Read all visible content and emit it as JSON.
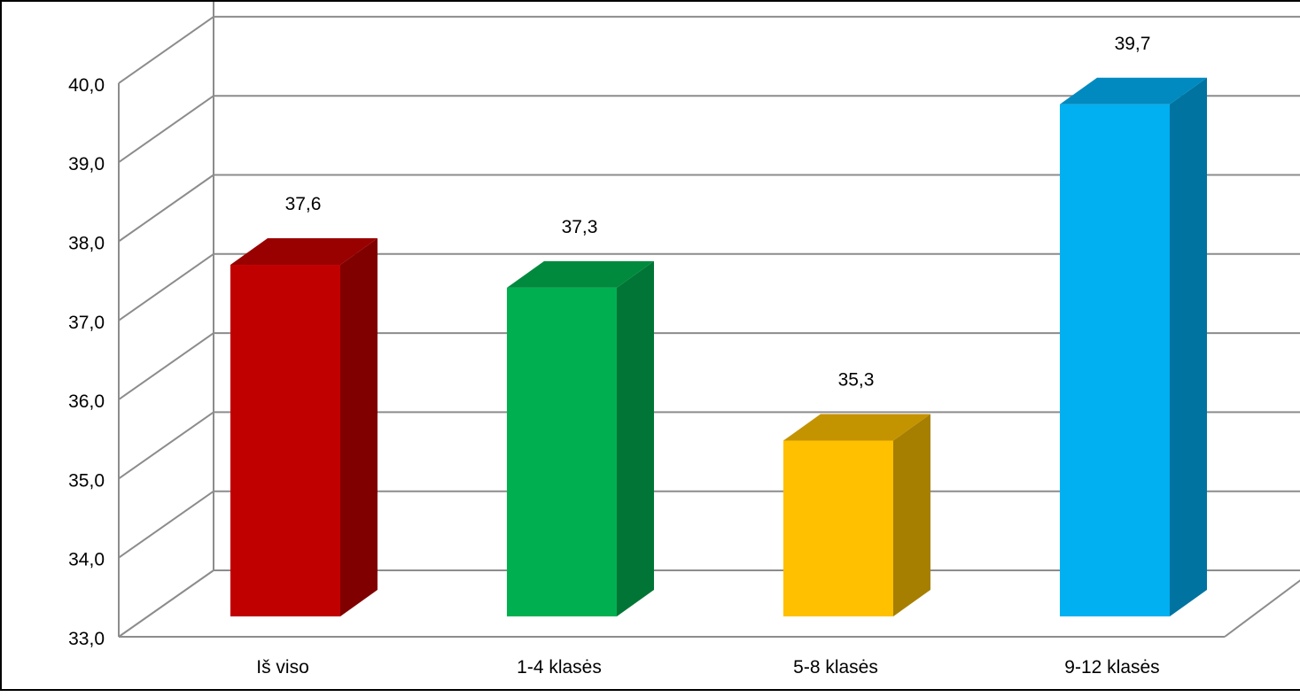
{
  "chart_data": {
    "type": "bar",
    "style": "3d-column",
    "title": "",
    "xlabel": "",
    "ylabel": "",
    "categories": [
      "Iš viso",
      "1-4 klasės",
      "5-8 klasės",
      "9-12 klasės"
    ],
    "values": [
      37.6,
      37.3,
      35.3,
      39.7
    ],
    "value_labels": [
      "37,6",
      "37,3",
      "35,3",
      "39,7"
    ],
    "ylim": [
      33,
      40
    ],
    "yticks": [
      "33,0",
      "34,0",
      "35,0",
      "36,0",
      "37,0",
      "38,0",
      "39,0",
      "40,0"
    ],
    "grid": true,
    "legend": "none",
    "colors": {
      "front": [
        "#c00000",
        "#00b050",
        "#ffc000",
        "#00b0f0"
      ],
      "side": [
        "#800000",
        "#007535",
        "#a67f00",
        "#0073a0"
      ],
      "top": [
        "#990000",
        "#008a3e",
        "#c49300",
        "#008ac0"
      ],
      "grid": "#8c8c8c"
    }
  }
}
